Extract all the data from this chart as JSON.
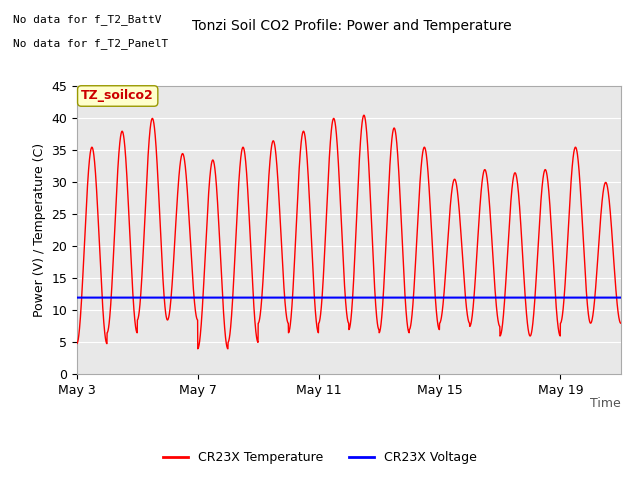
{
  "title": "Tonzi Soil CO2 Profile: Power and Temperature",
  "xlabel": "Time",
  "ylabel": "Power (V) / Temperature (C)",
  "ylim": [
    0,
    45
  ],
  "xtick_labels": [
    "May 3",
    "May 7",
    "May 11",
    "May 15",
    "May 19"
  ],
  "xtick_days": [
    0,
    4,
    8,
    12,
    16
  ],
  "temp_color": "#ff0000",
  "voltage_color": "#0000ff",
  "voltage_value": 12.0,
  "bg_color": "#e8e8e8",
  "fig_bg_color": "#ffffff",
  "no_data_text1": "No data for f_T2_BattV",
  "no_data_text2": "No data for f_T2_PanelT",
  "label_box_text": "TZ_soilco2",
  "legend_temp": "CR23X Temperature",
  "legend_voltage": "CR23X Voltage",
  "temp_peaks": [
    35.5,
    38.0,
    40.0,
    34.5,
    33.5,
    35.5,
    36.5,
    38.0,
    40.0,
    40.5,
    38.5,
    35.5,
    30.5,
    32.0,
    31.5,
    32.0,
    35.5,
    30.0
  ],
  "temp_troughs": [
    4.8,
    6.5,
    8.5,
    8.5,
    4.0,
    5.0,
    8.0,
    6.5,
    8.0,
    7.0,
    6.5,
    7.0,
    8.0,
    7.5,
    6.0,
    6.0,
    8.0,
    8.0
  ],
  "num_cycles": 18,
  "total_days": 18
}
